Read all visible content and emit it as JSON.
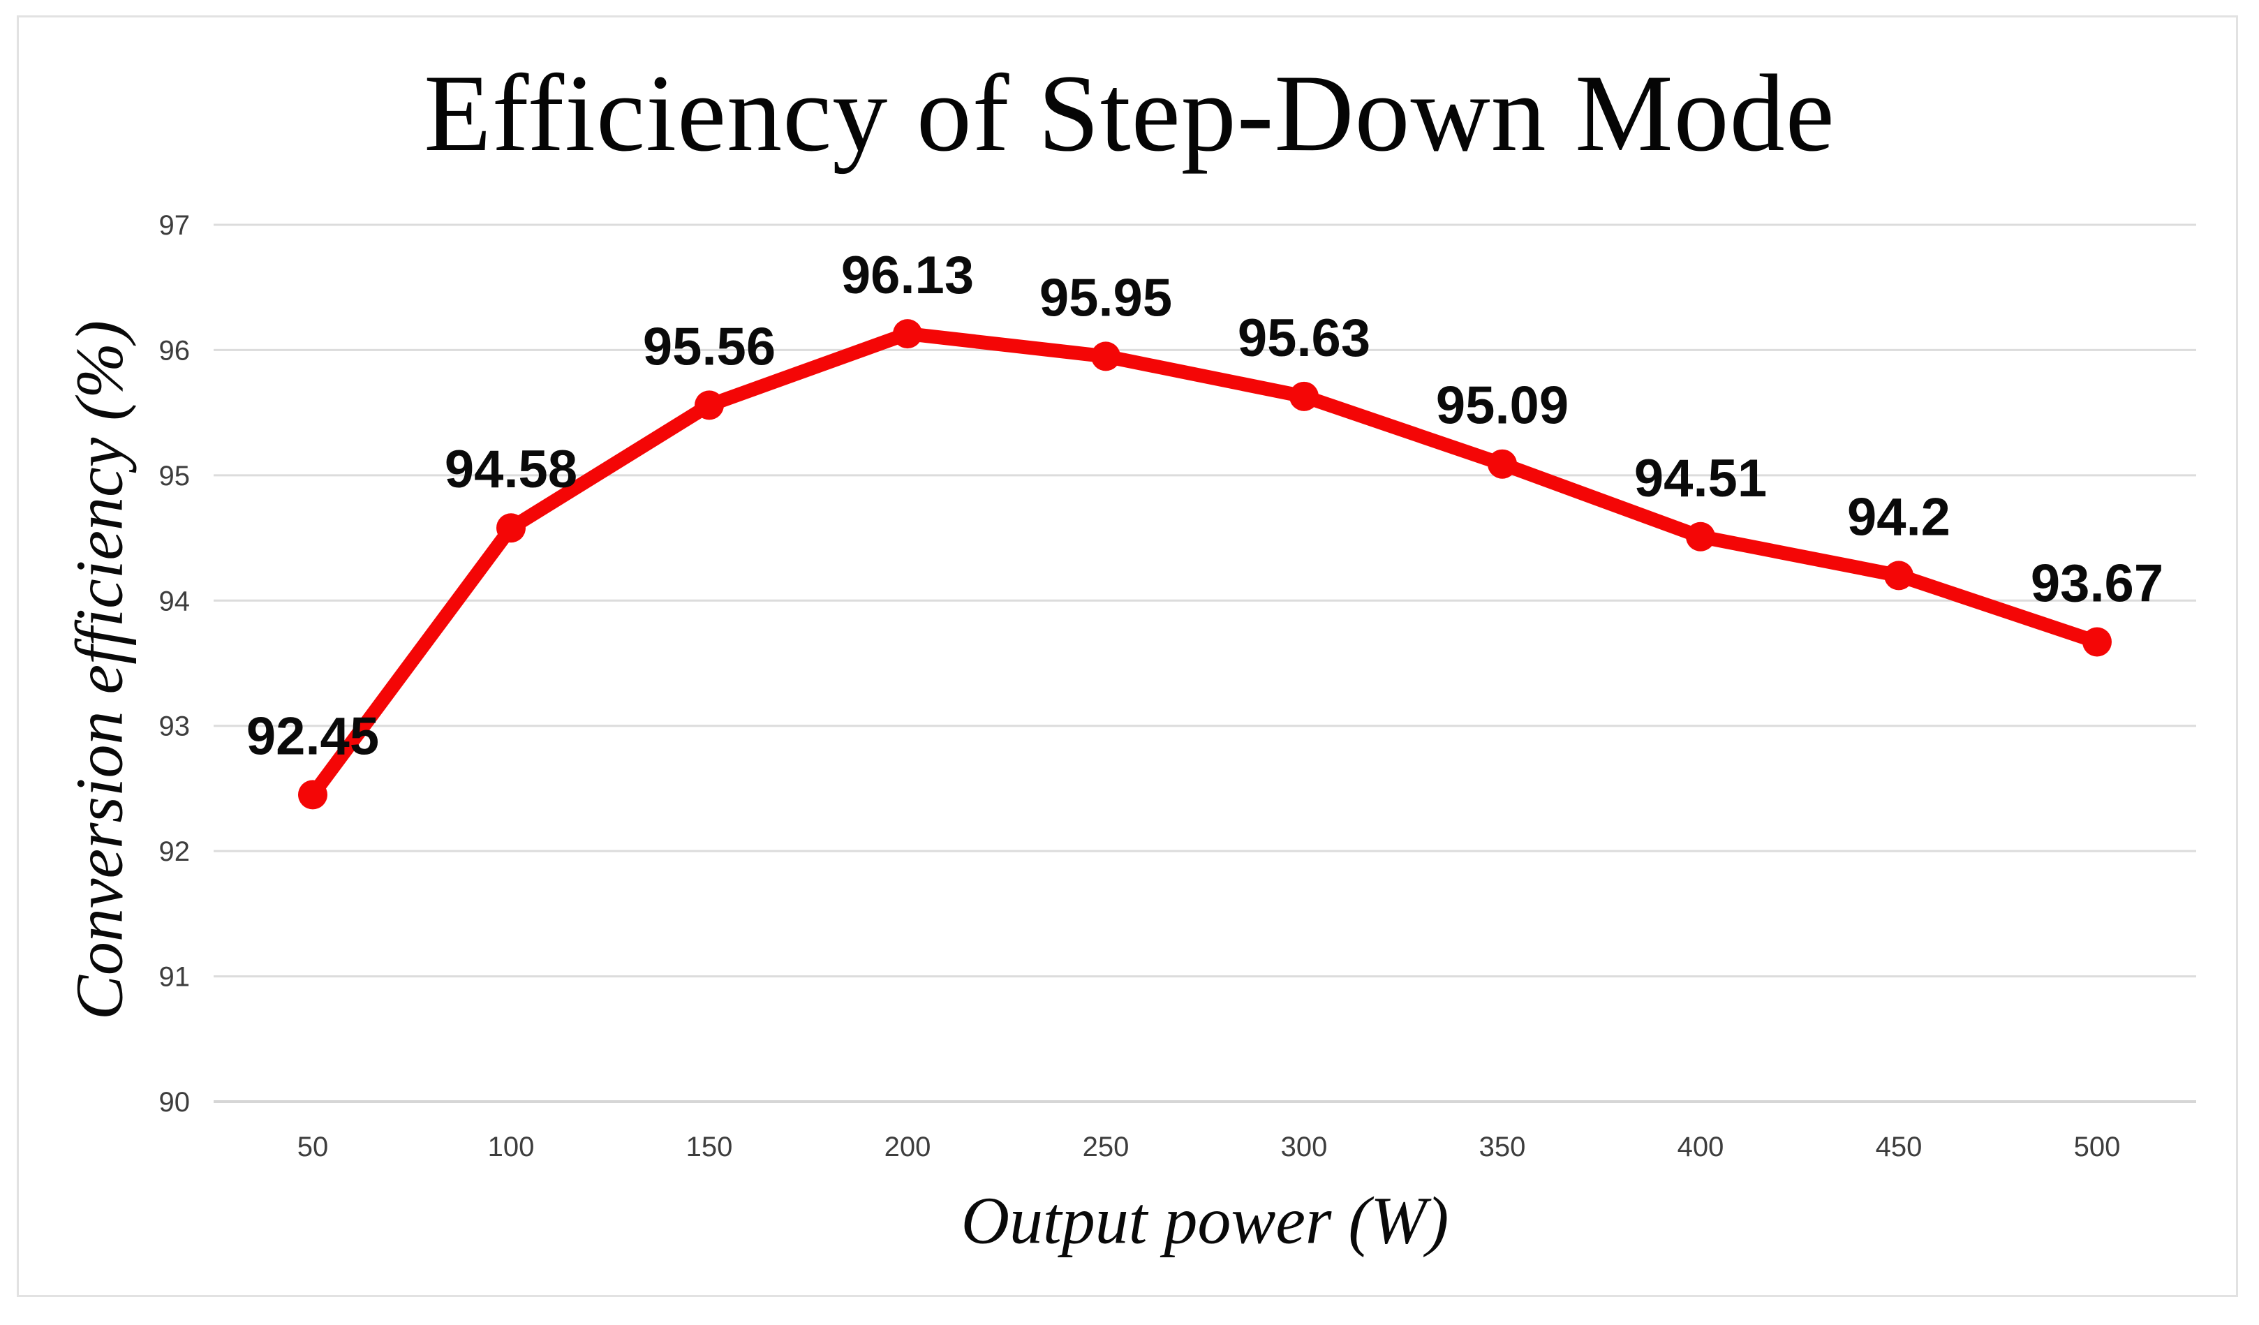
{
  "chart_data": {
    "type": "line",
    "title": "Efficiency of Step-Down Mode",
    "xlabel": "Output power (W)",
    "ylabel": "Conversion efficiency (%)",
    "x": [
      50,
      100,
      150,
      200,
      250,
      300,
      350,
      400,
      450,
      500
    ],
    "values": [
      92.45,
      94.58,
      95.56,
      96.13,
      95.95,
      95.63,
      95.09,
      94.51,
      94.2,
      93.67
    ],
    "data_labels": [
      "92.45",
      "94.58",
      "95.56",
      "96.13",
      "95.95",
      "95.63",
      "95.09",
      "94.51",
      "94.2",
      "93.67"
    ],
    "ylim": [
      90,
      97
    ],
    "yticks": [
      90,
      91,
      92,
      93,
      94,
      95,
      96,
      97
    ],
    "grid": "horizontal-only",
    "legend": "none",
    "line_color": "#f40606",
    "marker_color": "#f40606",
    "gridline_color": "#dcdcdc",
    "marker": "circle"
  }
}
